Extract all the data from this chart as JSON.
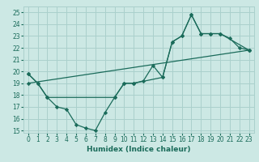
{
  "xlabel": "Humidex (Indice chaleur)",
  "xlim": [
    -0.5,
    23.5
  ],
  "ylim": [
    14.8,
    25.5
  ],
  "yticks": [
    15,
    16,
    17,
    18,
    19,
    20,
    21,
    22,
    23,
    24,
    25
  ],
  "xticks": [
    0,
    1,
    2,
    3,
    4,
    5,
    6,
    7,
    8,
    9,
    10,
    11,
    12,
    13,
    14,
    15,
    16,
    17,
    18,
    19,
    20,
    21,
    22,
    23
  ],
  "bg_color": "#cce8e4",
  "grid_color": "#aad0cc",
  "line_color": "#1a6b5a",
  "line1_x": [
    0,
    1,
    2,
    3,
    4,
    5,
    6,
    7,
    8,
    9,
    10,
    11,
    12,
    13,
    14,
    15,
    16,
    17,
    18,
    19,
    20,
    21,
    22,
    23
  ],
  "line1_y": [
    19.8,
    19.0,
    17.8,
    17.0,
    16.8,
    15.5,
    15.2,
    15.0,
    16.5,
    17.8,
    19.0,
    19.0,
    19.2,
    20.5,
    19.5,
    22.5,
    23.0,
    24.8,
    23.2,
    23.2,
    23.2,
    22.8,
    22.0,
    21.8
  ],
  "line2_x": [
    0,
    1,
    2,
    9,
    10,
    11,
    14,
    15,
    16,
    17,
    18,
    19,
    20,
    23
  ],
  "line2_y": [
    19.8,
    19.0,
    17.8,
    17.8,
    19.0,
    19.0,
    19.5,
    22.5,
    23.0,
    24.8,
    23.2,
    23.2,
    23.2,
    21.8
  ],
  "line3_x": [
    0,
    23
  ],
  "line3_y": [
    19.0,
    21.8
  ]
}
